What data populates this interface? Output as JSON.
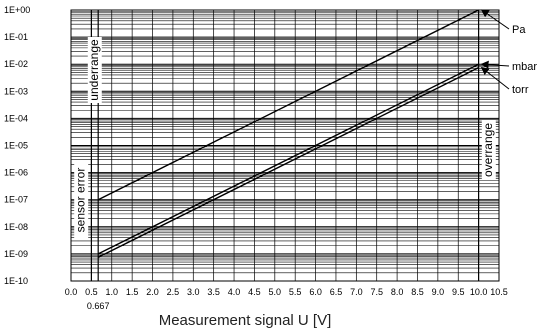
{
  "chart_data": {
    "type": "line",
    "title": "",
    "xlabel": "Measurement signal U [V]",
    "ylabel": "",
    "xlim": [
      0,
      10.5
    ],
    "ylim_exp": [
      -10,
      0
    ],
    "y_scale": "log",
    "grid": true,
    "x_ticks": [
      "0.0",
      "0.5",
      "1.0",
      "1.5",
      "2.0",
      "2.5",
      "3.0",
      "3.5",
      "4.0",
      "4.5",
      "5.0",
      "5.5",
      "6.0",
      "6.5",
      "7.0",
      "7.5",
      "8.0",
      "8.5",
      "9.0",
      "9.5",
      "10.0",
      "10.5"
    ],
    "x_extra_tick": "0.667",
    "y_ticks": [
      "1E-10",
      "1E-09",
      "1E-08",
      "1E-07",
      "1E-06",
      "1E-05",
      "1E-04",
      "1E-03",
      "1E-02",
      "1E-01",
      "1E+00"
    ],
    "regions": [
      {
        "label": "sensor error",
        "x_from": 0.0,
        "x_to": 0.5
      },
      {
        "label": "underrange",
        "x_from": 0.5,
        "x_to": 0.667
      },
      {
        "label": "overrange",
        "x_from": 10.0,
        "x_to": 10.5
      }
    ],
    "series": [
      {
        "name": "Pa",
        "x": [
          0.667,
          10.0
        ],
        "y": [
          "1E-07",
          "1E+00"
        ]
      },
      {
        "name": "mbar",
        "x": [
          0.667,
          10.0
        ],
        "y": [
          "1E-09",
          "1E-02"
        ]
      },
      {
        "name": "torr",
        "x": [
          0.667,
          10.0
        ],
        "y": [
          "7.5E-10",
          "7.5E-03"
        ]
      }
    ]
  }
}
